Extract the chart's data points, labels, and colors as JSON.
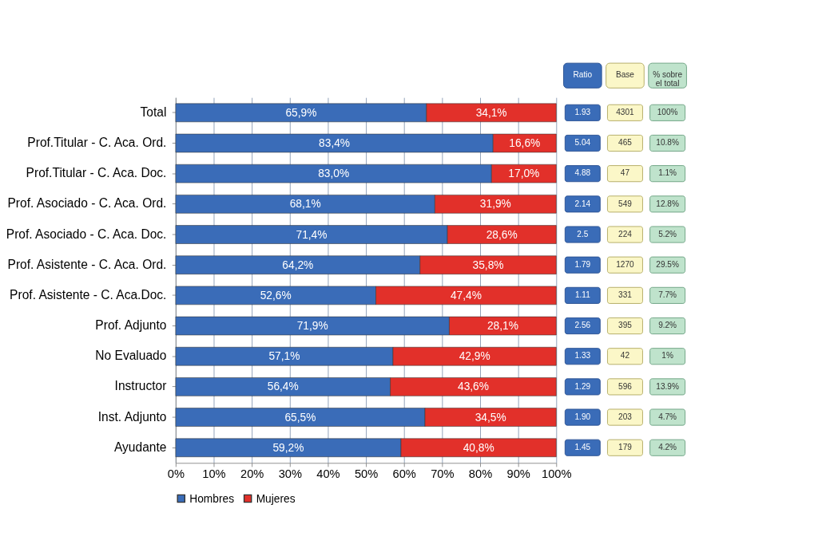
{
  "chart_data": [
    {
      "type": "bar",
      "orientation": "horizontal",
      "stacked": true,
      "categories": [
        "Total",
        "Prof.Titular - C. Aca. Ord.",
        "Prof.Titular - C. Aca. Doc.",
        "Prof. Asociado - C. Aca. Ord.",
        "Prof. Asociado - C. Aca. Doc.",
        "Prof. Asistente - C. Aca. Ord.",
        "Prof. Asistente - C. Aca.Doc.",
        "Prof. Adjunto",
        "No Evaluado",
        "Instructor",
        "Inst. Adjunto",
        "Ayudante"
      ],
      "series": [
        {
          "name": "Hombres",
          "color": "#3a6cb8",
          "values": [
            65.9,
            83.4,
            83.0,
            68.1,
            71.4,
            64.2,
            52.6,
            71.9,
            57.1,
            56.4,
            65.5,
            59.2
          ],
          "value_labels": [
            "65,9%",
            "83,4%",
            "83,0%",
            "68,1%",
            "71,4%",
            "64,2%",
            "52,6%",
            "71,9%",
            "57,1%",
            "56,4%",
            "65,5%",
            "59,2%"
          ]
        },
        {
          "name": "Mujeres",
          "color": "#e2302a",
          "values": [
            34.1,
            16.6,
            17.0,
            31.9,
            28.6,
            35.8,
            47.4,
            28.1,
            42.9,
            43.6,
            34.5,
            40.8
          ],
          "value_labels": [
            "34,1%",
            "16,6%",
            "17,0%",
            "31,9%",
            "28,6%",
            "35,8%",
            "47,4%",
            "28,1%",
            "42,9%",
            "43,6%",
            "34,5%",
            "40,8%"
          ]
        }
      ],
      "xlim": [
        0,
        100
      ],
      "xticks": [
        {
          "value": 0,
          "label": "0%"
        },
        {
          "value": 10,
          "label": "10%"
        },
        {
          "value": 20,
          "label": "20%"
        },
        {
          "value": 30,
          "label": "30%"
        },
        {
          "value": 40,
          "label": "40%"
        },
        {
          "value": 50,
          "label": "50%"
        },
        {
          "value": 60,
          "label": "60%"
        },
        {
          "value": 70,
          "label": "70%"
        },
        {
          "value": 80,
          "label": "80%"
        },
        {
          "value": 90,
          "label": "90%"
        },
        {
          "value": 100,
          "label": "100%"
        }
      ],
      "grid": "x",
      "legend": "bottom left"
    },
    {
      "type": "other",
      "annotations": [
        "Ratio",
        "Base",
        "% sobre el total",
        "1.93",
        "4301",
        "100%",
        "5.04",
        "465",
        "10.8%",
        "4.88",
        "47",
        "1.1%",
        "2.14",
        "549",
        "12.8%",
        "2.5",
        "224",
        "5.2%",
        "1.79",
        "1270",
        "29.5%",
        "1.11",
        "331",
        "7.7%",
        "2.56",
        "395",
        "9.2%",
        "1.33",
        "42",
        "1%",
        "1.29",
        "596",
        "13.9%",
        "1.90",
        "203",
        "4.7%",
        "1.45",
        "179",
        "4.2%"
      ]
    }
  ]
}
